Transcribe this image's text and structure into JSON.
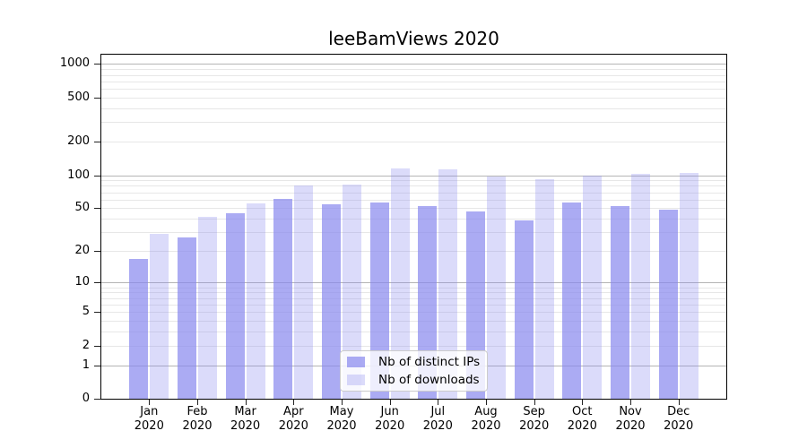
{
  "figure": {
    "background": "#ffffff"
  },
  "chart_data": {
    "type": "bar",
    "title": "leeBamViews 2020",
    "categories": [
      "Jan 2020",
      "Feb 2020",
      "Mar 2020",
      "Apr 2020",
      "May 2020",
      "Jun 2020",
      "Jul 2020",
      "Aug 2020",
      "Sep 2020",
      "Oct 2020",
      "Nov 2020",
      "Dec 2020"
    ],
    "series": [
      {
        "name": "Nb of distinct IPs",
        "color": "rgba(136,136,238,0.7)",
        "values": [
          17,
          27,
          45,
          61,
          54,
          56,
          52,
          47,
          39,
          56,
          52,
          49
        ]
      },
      {
        "name": "Nb of downloads",
        "color": "rgba(136,136,238,0.3)",
        "values": [
          29,
          42,
          55,
          81,
          82,
          114,
          113,
          97,
          92,
          99,
          102,
          105
        ]
      }
    ],
    "xlabel": "",
    "ylabel": "",
    "yscale": "log10(value+1)",
    "yticks": [
      1000,
      500,
      200,
      100,
      50,
      20,
      10,
      5,
      2,
      1,
      0
    ],
    "ylim": [
      0,
      1200
    ],
    "grid": "horizontal major at powers of 10, faint minors at 2-9 of each decade",
    "legend_position": "lower center inside plot"
  },
  "legend": {
    "items": [
      {
        "label": "Nb of distinct IPs",
        "color": "rgba(136,136,238,0.7)"
      },
      {
        "label": "Nb of downloads",
        "color": "rgba(136,136,238,0.3)"
      }
    ]
  },
  "colors": {
    "bar_base": "#8888ee",
    "bar_strong": "rgba(136,136,238,0.7)",
    "bar_light": "rgba(136,136,238,0.3)",
    "major_gridline": "#b5b5b5",
    "minor_gridline": "#e7e7e7",
    "spine": "#000000",
    "legend_border": "#cccccc",
    "text": "#000000"
  }
}
